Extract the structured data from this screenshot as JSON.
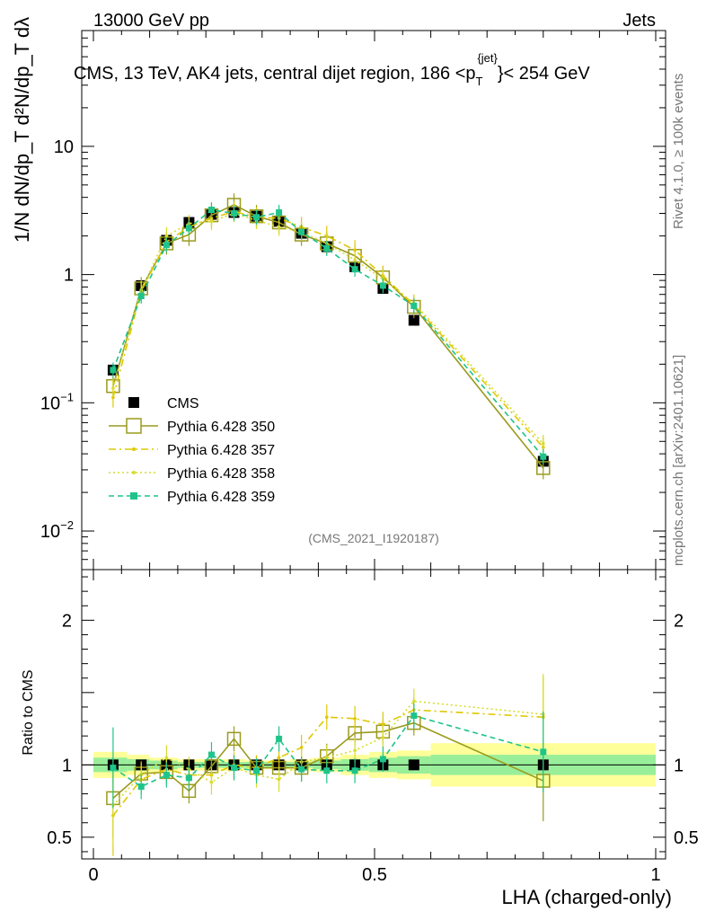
{
  "header": {
    "left": "13000 GeV pp",
    "right": "Jets"
  },
  "side_labels": {
    "rivet": "Rivet 4.1.0, ≥ 100k events",
    "mcplots": "mcplots.cern.ch [arXiv:2401.10621]"
  },
  "watermark": "(CMS_2021_I1920187)",
  "ylabel_top": "1/N dN/dp_T d²N/dp_T dλ",
  "chart_data": {
    "type": "line",
    "title": "CMS, 13 TeV, AK4 jets, central dijet region, 186 < p_T^{jet} < 254 GeV",
    "title_parts": {
      "main": "CMS, 13 TeV, AK4 jets, central dijet region, 186 <p",
      "sub": "T",
      "sup": "{jet}",
      "tail": "}< 254 GeV"
    },
    "xlabel": "LHA (charged-only)",
    "ylabel_bottom": "Ratio to CMS",
    "xlim": [
      0,
      1
    ],
    "ylim_top": [
      0.005,
      80
    ],
    "yscale_top": "log",
    "ylim_bottom": [
      0.35,
      2.35
    ],
    "x_ticks": [
      0,
      0.5,
      1
    ],
    "x_tick_labels": [
      "0",
      "0.5",
      "1"
    ],
    "y_ticks_top": [
      0.01,
      0.1,
      1,
      10
    ],
    "y_tick_labels_top": [
      {
        "base": "10",
        "exp": "−2"
      },
      {
        "base": "10",
        "exp": "−1"
      },
      {
        "base": "1",
        "exp": ""
      },
      {
        "base": "10",
        "exp": ""
      }
    ],
    "y_ticks_bottom": [
      0.5,
      1,
      2
    ],
    "y_tick_labels_bottom": [
      "0.5",
      "1",
      "2"
    ],
    "legend_position": "middle-left",
    "x": [
      0.035,
      0.085,
      0.13,
      0.17,
      0.21,
      0.25,
      0.29,
      0.33,
      0.37,
      0.415,
      0.465,
      0.515,
      0.57,
      0.8
    ],
    "series": [
      {
        "name": "CMS",
        "color": "#000000",
        "style": "square-marker",
        "values": [
          0.18,
          0.82,
          1.85,
          2.55,
          2.95,
          3.05,
          2.85,
          2.6,
          2.1,
          1.65,
          1.15,
          0.78,
          0.44,
          0.035
        ],
        "ratio": [
          1,
          1,
          1,
          1,
          1,
          1,
          1,
          1,
          1,
          1,
          1,
          1,
          1,
          1
        ]
      },
      {
        "name": "Pythia 6.428 350",
        "color": "#9a9a1e",
        "style": "solid-open-square",
        "values": [
          0.135,
          0.78,
          1.75,
          2.05,
          2.9,
          3.5,
          2.85,
          2.55,
          2.05,
          1.75,
          1.4,
          0.95,
          0.56,
          0.031
        ],
        "ratio": [
          0.77,
          0.94,
          0.95,
          0.82,
          0.99,
          1.18,
          0.98,
          0.98,
          0.98,
          1.06,
          1.22,
          1.23,
          1.29,
          0.89
        ]
      },
      {
        "name": "Pythia 6.428 357",
        "color": "#e0c800",
        "style": "dash-dot",
        "values": [
          0.11,
          0.74,
          1.8,
          2.35,
          2.75,
          3.1,
          2.8,
          2.75,
          2.35,
          2.0,
          1.55,
          0.98,
          0.58,
          0.045
        ],
        "ratio": [
          0.65,
          0.9,
          0.97,
          0.93,
          0.93,
          1.0,
          0.98,
          1.05,
          1.12,
          1.33,
          1.32,
          1.28,
          1.38,
          1.33
        ]
      },
      {
        "name": "Pythia 6.428 358",
        "color": "#d8dc2c",
        "style": "dotted",
        "values": [
          0.13,
          0.76,
          2.0,
          2.5,
          2.6,
          3.0,
          2.65,
          2.35,
          2.15,
          1.75,
          1.3,
          0.92,
          0.6,
          0.048
        ],
        "ratio": [
          0.72,
          0.93,
          1.05,
          0.97,
          0.88,
          0.98,
          0.93,
          0.9,
          1.02,
          1.05,
          1.1,
          1.19,
          1.44,
          1.35
        ]
      },
      {
        "name": "Pythia 6.428 359",
        "color": "#1fc48a",
        "style": "dashed-square",
        "values": [
          0.18,
          0.68,
          1.7,
          2.3,
          3.2,
          3.0,
          2.8,
          3.05,
          2.15,
          1.6,
          1.1,
          0.82,
          0.57,
          0.038
        ],
        "ratio": [
          0.98,
          0.85,
          0.93,
          0.91,
          1.07,
          0.98,
          0.96,
          1.18,
          0.97,
          0.96,
          0.96,
          1.04,
          1.34,
          1.09
        ]
      }
    ],
    "uncertainty_bands": {
      "bin_edges": [
        0,
        0.06,
        0.1,
        0.15,
        0.19,
        0.23,
        0.27,
        0.31,
        0.35,
        0.39,
        0.44,
        0.49,
        0.54,
        0.6,
        1.0
      ],
      "inner": [
        0.05,
        0.04,
        0.03,
        0.02,
        0.02,
        0.02,
        0.02,
        0.02,
        0.02,
        0.03,
        0.04,
        0.05,
        0.06,
        0.07
      ],
      "outer": [
        0.09,
        0.07,
        0.05,
        0.04,
        0.04,
        0.04,
        0.03,
        0.03,
        0.04,
        0.05,
        0.07,
        0.09,
        0.1,
        0.15
      ],
      "inner_color": "#99ee99",
      "outer_color": "#ffff99"
    }
  }
}
